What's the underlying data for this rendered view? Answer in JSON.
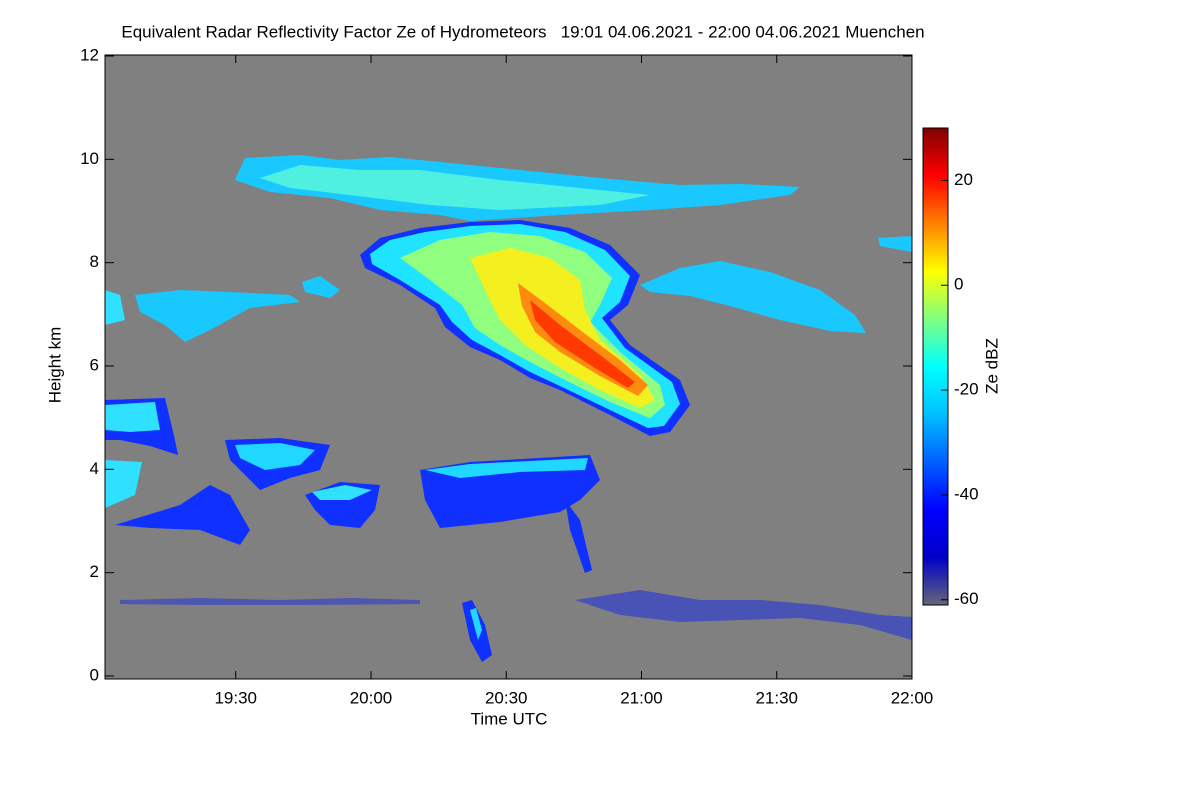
{
  "chart_data": {
    "type": "heatmap",
    "title": "Equivalent Radar Reflectivity Factor Ze of Hydrometeors   19:01 04.06.2021 - 22:00 04.06.2021 Muenchen",
    "x_label": "Time UTC",
    "y_label": "Height km",
    "colorbar_label": "Ze dBZ",
    "xlim": [
      1141,
      1320
    ],
    "xticks": [
      {
        "value": 1170,
        "label": "19:30"
      },
      {
        "value": 1200,
        "label": "20:00"
      },
      {
        "value": 1230,
        "label": "20:30"
      },
      {
        "value": 1260,
        "label": "21:00"
      },
      {
        "value": 1290,
        "label": "21:30"
      },
      {
        "value": 1320,
        "label": "22:00"
      }
    ],
    "ylim": [
      0,
      12
    ],
    "yticks": [
      0,
      2,
      4,
      6,
      8,
      10,
      12
    ],
    "clim": [
      -61,
      30
    ],
    "cticks": [
      -60,
      -40,
      -20,
      0,
      20
    ],
    "background": "#808080",
    "colormap": [
      "#66667a",
      "#0000c8",
      "#0000ff",
      "#0060ff",
      "#00c0ff",
      "#00ffff",
      "#80ff80",
      "#ffff00",
      "#ff8000",
      "#ff0000",
      "#800000"
    ]
  }
}
